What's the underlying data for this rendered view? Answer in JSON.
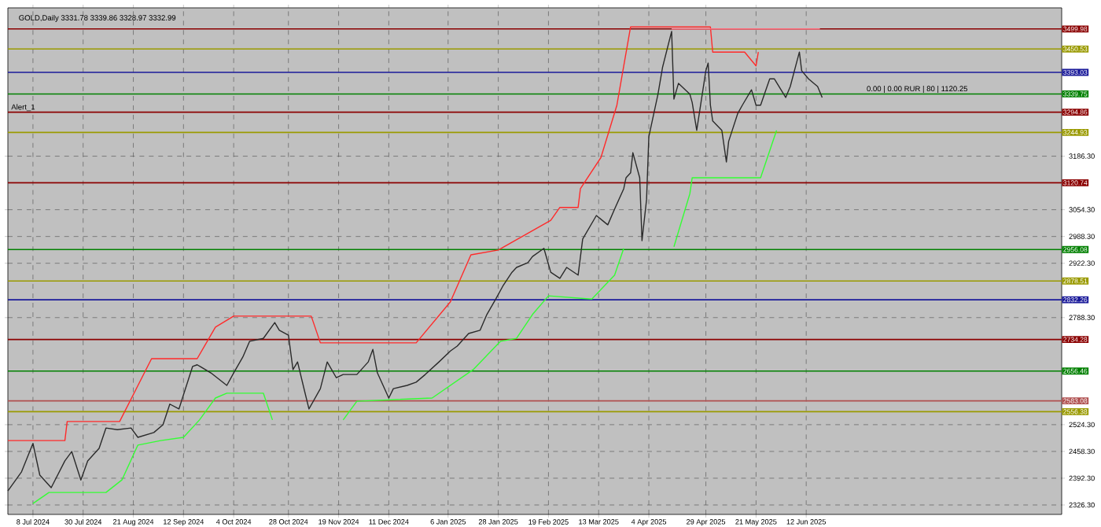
{
  "chart_data": {
    "type": "line",
    "title": "GOLD,Daily 3331.78 3339.86 3328.97 3332.99",
    "xlim": [
      "2024-06-27",
      "2025-10-02"
    ],
    "ylim": [
      2303,
      3552
    ],
    "grid": true,
    "line_style": "solid",
    "xticks": [
      {
        "value": "2024-07-08",
        "label": "8 Jul 2024"
      },
      {
        "value": "2024-07-30",
        "label": "30 Jul 2024"
      },
      {
        "value": "2024-08-21",
        "label": "21 Aug 2024"
      },
      {
        "value": "2024-09-12",
        "label": "12 Sep 2024"
      },
      {
        "value": "2024-10-04",
        "label": "4 Oct 2024"
      },
      {
        "value": "2024-10-28",
        "label": "28 Oct 2024"
      },
      {
        "value": "2024-11-19",
        "label": "19 Nov 2024"
      },
      {
        "value": "2024-12-11",
        "label": "11 Dec 2024"
      },
      {
        "value": "2025-01-06",
        "label": "6 Jan 2025"
      },
      {
        "value": "2025-01-28",
        "label": "28 Jan 2025"
      },
      {
        "value": "2025-02-19",
        "label": "19 Feb 2025"
      },
      {
        "value": "2025-03-13",
        "label": "13 Mar 2025"
      },
      {
        "value": "2025-04-04",
        "label": "4 Apr 2025"
      },
      {
        "value": "2025-04-29",
        "label": "29 Apr 2025"
      },
      {
        "value": "2025-05-21",
        "label": "21 May 2025"
      },
      {
        "value": "2025-06-12",
        "label": "12 Jun 2025"
      }
    ],
    "yticks": [
      {
        "value": 2326.3,
        "label": "2326.30"
      },
      {
        "value": 2392.3,
        "label": "2392.30"
      },
      {
        "value": 2458.3,
        "label": "2458.30"
      },
      {
        "value": 2524.3,
        "label": "2524.30"
      },
      {
        "value": 2788.3,
        "label": "2788.30"
      },
      {
        "value": 2922.3,
        "label": "2922.30"
      },
      {
        "value": 2988.3,
        "label": "2988.30"
      },
      {
        "value": 3054.3,
        "label": "3054.30"
      },
      {
        "value": 3186.3,
        "label": "3186.30"
      }
    ],
    "series": [
      {
        "color": "#2a2a2a",
        "x": [
          "2024-06-27",
          "2024-07-03",
          "2024-07-08",
          "2024-07-11",
          "2024-07-16",
          "2024-07-22",
          "2024-07-25",
          "2024-07-29",
          "2024-08-01",
          "2024-08-06",
          "2024-08-09",
          "2024-08-14",
          "2024-08-20",
          "2024-08-23",
          "2024-08-30",
          "2024-09-03",
          "2024-09-06",
          "2024-09-10",
          "2024-09-16",
          "2024-09-18",
          "2024-09-24",
          "2024-10-01",
          "2024-10-04",
          "2024-10-08",
          "2024-10-11",
          "2024-10-17",
          "2024-10-22",
          "2024-10-24",
          "2024-10-28",
          "2024-10-30",
          "2024-11-01",
          "2024-11-04",
          "2024-11-06",
          "2024-11-11",
          "2024-11-14",
          "2024-11-18",
          "2024-11-21",
          "2024-11-27",
          "2024-12-02",
          "2024-12-04",
          "2024-12-06",
          "2024-12-11",
          "2024-12-13",
          "2024-12-19",
          "2024-12-23",
          "2024-12-27",
          "2025-01-02",
          "2025-01-07",
          "2025-01-10",
          "2025-01-15",
          "2025-01-20",
          "2025-01-23",
          "2025-01-27",
          "2025-01-30",
          "2025-02-03",
          "2025-02-05",
          "2025-02-10",
          "2025-02-12",
          "2025-02-17",
          "2025-02-20",
          "2025-02-24",
          "2025-02-27",
          "2025-03-04",
          "2025-03-06",
          "2025-03-12",
          "2025-03-17",
          "2025-03-20",
          "2025-03-24",
          "2025-03-25",
          "2025-03-27",
          "2025-03-28",
          "2025-03-31",
          "2025-04-01",
          "2025-04-03",
          "2025-04-04",
          "2025-04-08",
          "2025-04-10",
          "2025-04-14",
          "2025-04-15",
          "2025-04-17",
          "2025-04-22",
          "2025-04-23",
          "2025-04-25",
          "2025-04-29",
          "2025-04-30",
          "2025-05-01",
          "2025-05-02",
          "2025-05-06",
          "2025-05-08",
          "2025-05-09",
          "2025-05-13",
          "2025-05-15",
          "2025-05-19",
          "2025-05-21",
          "2025-05-23",
          "2025-05-27",
          "2025-05-29",
          "2025-06-03",
          "2025-06-05",
          "2025-06-09",
          "2025-06-10",
          "2025-06-13",
          "2025-06-17",
          "2025-06-19"
        ],
        "values": [
          2361,
          2408,
          2478,
          2400,
          2369,
          2435,
          2458,
          2388,
          2435,
          2466,
          2516,
          2512,
          2516,
          2493,
          2505,
          2524,
          2575,
          2563,
          2668,
          2672,
          2652,
          2621,
          2652,
          2691,
          2730,
          2737,
          2776,
          2757,
          2745,
          2660,
          2679,
          2609,
          2563,
          2613,
          2679,
          2640,
          2648,
          2648,
          2679,
          2710,
          2652,
          2590,
          2613,
          2621,
          2629,
          2648,
          2679,
          2706,
          2718,
          2749,
          2757,
          2796,
          2835,
          2866,
          2900,
          2912,
          2924,
          2939,
          2959,
          2900,
          2885,
          2912,
          2893,
          2982,
          3040,
          3017,
          3056,
          3106,
          3133,
          3145,
          3195,
          3133,
          2978,
          3079,
          3234,
          3339,
          3405,
          3494,
          3327,
          3366,
          3339,
          3319,
          3250,
          3397,
          3416,
          3312,
          3273,
          3250,
          3172,
          3223,
          3292,
          3312,
          3350,
          3312,
          3312,
          3377,
          3377,
          3331,
          3358,
          3443,
          3397,
          3377,
          3358,
          3331
        ]
      },
      {
        "color": "#ff2a2a",
        "x": [
          "2024-06-27",
          "2024-07-22",
          "2024-07-23",
          "2024-08-15",
          "2024-08-29",
          "2024-09-18",
          "2024-09-26",
          "2024-10-04",
          "2024-11-07",
          "2024-11-11",
          "2024-12-23",
          "2025-01-07",
          "2025-01-16",
          "2025-01-28",
          "2025-02-20",
          "2025-02-24",
          "2025-03-04",
          "2025-03-05",
          "2025-03-14",
          "2025-03-21",
          "2025-03-27",
          "2025-05-01",
          "2025-05-02",
          "2025-05-16",
          "2025-05-21",
          "2025-05-22"
        ],
        "values": [
          2485,
          2485,
          2532,
          2532,
          2687,
          2687,
          2765,
          2792,
          2792,
          2726,
          2726,
          2827,
          2943,
          2955,
          3028,
          3060,
          3060,
          3106,
          3183,
          3312,
          3505,
          3505,
          3443,
          3443,
          3409,
          3443
        ]
      },
      {
        "color": "#33ff33",
        "x": [
          "2024-07-08",
          "2024-07-15",
          "2024-08-09",
          "2024-08-16",
          "2024-08-23",
          "2024-09-02",
          "2024-09-12",
          "2024-09-19",
          "2024-09-26",
          "2024-10-01",
          "2024-10-17",
          "2024-10-21",
          "2024-11-05",
          "2024-11-21",
          "2024-11-27",
          "2024-12-30",
          "2025-01-17",
          "2025-01-29",
          "2025-02-05",
          "2025-02-12",
          "2025-02-19",
          "2025-03-10",
          "2025-03-20",
          "2025-03-24",
          "2025-04-03",
          "2025-04-15",
          "2025-04-22",
          "2025-04-23",
          "2025-05-23",
          "2025-05-30"
        ],
        "values": [
          2330,
          2357,
          2357,
          2388,
          2474,
          2485,
          2493,
          2536,
          2590,
          2602,
          2602,
          2536,
          null,
          2536,
          2582,
          2590,
          2660,
          2730,
          2737,
          2796,
          2842,
          2834,
          2893,
          2959,
          null,
          2963,
          3094,
          3133,
          3133,
          3250
        ]
      },
      {
        "color": "#ff6a7a",
        "x": [
          "2025-04-14",
          "2025-06-18"
        ],
        "values": [
          3500,
          3500
        ]
      }
    ],
    "ref_lines": [
      {
        "axis": "y",
        "value": 3499.98,
        "label": "3499.98",
        "color": "#8b0000"
      },
      {
        "axis": "y",
        "value": 3450.53,
        "label": "3450.53",
        "color": "#9a9a00"
      },
      {
        "axis": "y",
        "value": 3393.03,
        "label": "3393.03",
        "color": "#1a1a9a"
      },
      {
        "axis": "y",
        "value": 3339.75,
        "label": "3339.75",
        "color": "#008000"
      },
      {
        "axis": "y",
        "value": 3294.86,
        "label": "3294.86",
        "color": "#8b0000"
      },
      {
        "axis": "y",
        "value": 3244.93,
        "label": "3244.93",
        "color": "#9a9a00"
      },
      {
        "axis": "y",
        "value": 3120.74,
        "label": "3120.74",
        "color": "#8b0000"
      },
      {
        "axis": "y",
        "value": 2956.08,
        "label": "2956.08",
        "color": "#008000"
      },
      {
        "axis": "y",
        "value": 2878.51,
        "label": "2878.51",
        "color": "#9a9a00"
      },
      {
        "axis": "y",
        "value": 2832.26,
        "label": "2832.26",
        "color": "#1a1a9a"
      },
      {
        "axis": "y",
        "value": 2734.28,
        "label": "2734.28",
        "color": "#8b0000"
      },
      {
        "axis": "y",
        "value": 2656.46,
        "label": "2656.46",
        "color": "#008000"
      },
      {
        "axis": "y",
        "value": 2583.08,
        "label": "2583.08",
        "color": "#b05050"
      },
      {
        "axis": "y",
        "value": 2556.38,
        "label": "2556.38",
        "color": "#9a9a00"
      }
    ],
    "annotations": [
      {
        "text": "Alert_1",
        "x": "2024-06-28",
        "y": 3294.86
      },
      {
        "text": "0.00 | 0.00 RUR | 80 | 1120.25",
        "x": "2025-07-08",
        "y": 3339.75
      }
    ]
  }
}
